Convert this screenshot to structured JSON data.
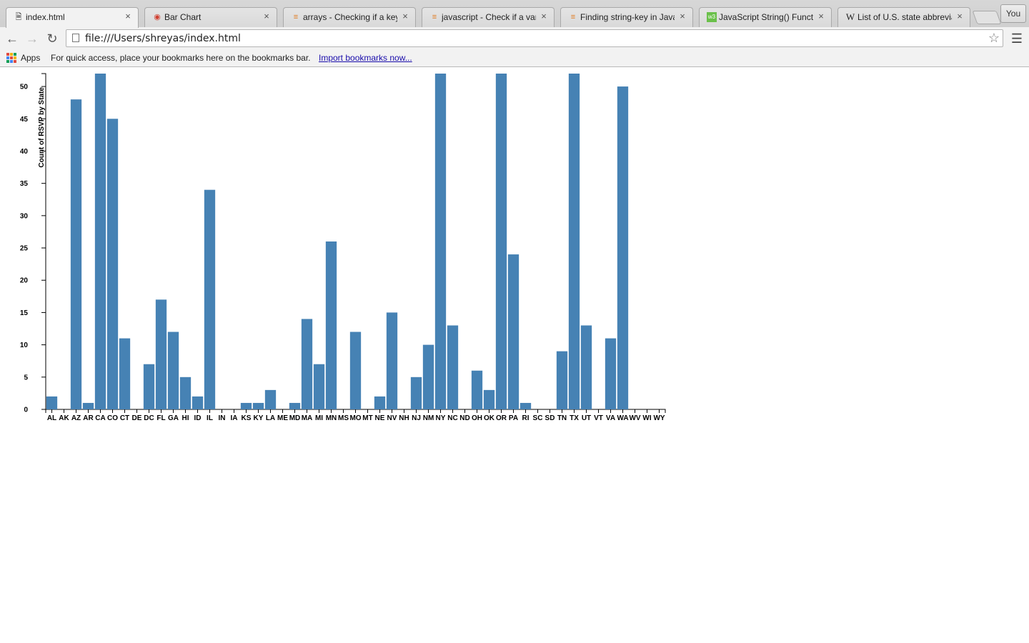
{
  "browser": {
    "tabs": [
      {
        "title": "index.html",
        "favicon": "page-icon",
        "active": true
      },
      {
        "title": "Bar Chart",
        "favicon": "colorful-icon",
        "active": false
      },
      {
        "title": "arrays - Checking if a key",
        "favicon": "stack-overflow-icon",
        "active": false
      },
      {
        "title": "javascript - Check if a vari",
        "favicon": "stack-overflow-icon",
        "active": false
      },
      {
        "title": "Finding string-key in Java",
        "favicon": "stack-overflow-icon",
        "active": false
      },
      {
        "title": "JavaScript String() Function",
        "favicon": "w3schools-icon",
        "active": false
      },
      {
        "title": "List of U.S. state abbreviati",
        "favicon": "wikipedia-icon",
        "active": false
      }
    ],
    "profile_label": "You",
    "url": "file:///Users/shreyas/index.html",
    "bookmarks": {
      "apps_label": "Apps",
      "hint": "For quick access, place your bookmarks here on the bookmarks bar.",
      "import_link": "Import bookmarks now..."
    }
  },
  "chart_data": {
    "type": "bar",
    "ylabel": "Count of RSVP by State",
    "ylim": [
      0,
      52
    ],
    "yticks": [
      0,
      5,
      10,
      15,
      20,
      25,
      30,
      35,
      40,
      45,
      50
    ],
    "bar_color": "#4682b4",
    "categories": [
      "AL",
      "AK",
      "AZ",
      "AR",
      "CA",
      "CO",
      "CT",
      "DE",
      "DC",
      "FL",
      "GA",
      "HI",
      "ID",
      "IL",
      "IN",
      "IA",
      "KS",
      "KY",
      "LA",
      "ME",
      "MD",
      "MA",
      "MI",
      "MN",
      "MS",
      "MO",
      "MT",
      "NE",
      "NV",
      "NH",
      "NJ",
      "NM",
      "NY",
      "NC",
      "ND",
      "OH",
      "OK",
      "OR",
      "PA",
      "RI",
      "SC",
      "SD",
      "TN",
      "TX",
      "UT",
      "VT",
      "VA",
      "WA",
      "WV",
      "WI",
      "WY"
    ],
    "values": [
      2,
      0,
      48,
      1,
      52,
      45,
      11,
      0,
      7,
      17,
      12,
      5,
      2,
      34,
      0,
      0,
      1,
      1,
      3,
      0,
      1,
      14,
      7,
      26,
      0,
      12,
      0,
      2,
      15,
      0,
      5,
      10,
      52,
      13,
      0,
      6,
      3,
      52,
      24,
      1,
      0,
      0,
      9,
      52,
      13,
      0,
      11,
      50,
      0,
      0,
      0
    ]
  }
}
